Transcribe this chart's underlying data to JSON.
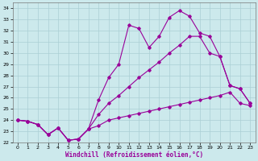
{
  "xlabel": "Windchill (Refroidissement éolien,°C)",
  "bg_color": "#cce9ec",
  "grid_color": "#aacfd4",
  "line_color": "#990099",
  "ylim": [
    22,
    34.5
  ],
  "xlim": [
    -0.5,
    23.5
  ],
  "yticks": [
    22,
    23,
    24,
    25,
    26,
    27,
    28,
    29,
    30,
    31,
    32,
    33,
    34
  ],
  "xticks": [
    0,
    1,
    2,
    3,
    4,
    5,
    6,
    7,
    8,
    9,
    10,
    11,
    12,
    13,
    14,
    15,
    16,
    17,
    18,
    19,
    20,
    21,
    22,
    23
  ],
  "series1_x": [
    0,
    1,
    2,
    3,
    4,
    5,
    6,
    7,
    8,
    9,
    10,
    11,
    12,
    13,
    14,
    15,
    16,
    17,
    18,
    19,
    20,
    21,
    22,
    23
  ],
  "series1_y": [
    24.0,
    23.9,
    23.6,
    22.7,
    23.3,
    22.2,
    22.3,
    23.2,
    23.5,
    24.0,
    24.2,
    24.4,
    24.6,
    24.8,
    25.0,
    25.2,
    25.4,
    25.6,
    25.8,
    26.0,
    26.2,
    26.5,
    25.5,
    25.3
  ],
  "series2_x": [
    0,
    1,
    2,
    3,
    4,
    5,
    6,
    7,
    8,
    9,
    10,
    11,
    12,
    13,
    14,
    15,
    16,
    17,
    18,
    19,
    20,
    21,
    22,
    23
  ],
  "series2_y": [
    24.0,
    23.9,
    23.6,
    22.7,
    23.3,
    22.2,
    22.3,
    23.2,
    25.8,
    27.8,
    29.0,
    32.5,
    32.2,
    30.5,
    31.5,
    33.2,
    33.8,
    33.3,
    31.8,
    31.5,
    29.7,
    27.1,
    26.8,
    25.5
  ],
  "series3_x": [
    0,
    1,
    2,
    3,
    4,
    5,
    6,
    7,
    8,
    9,
    10,
    11,
    12,
    13,
    14,
    15,
    16,
    17,
    18,
    19,
    20,
    21,
    22,
    23
  ],
  "series3_y": [
    24.0,
    23.9,
    23.6,
    22.7,
    23.3,
    22.2,
    22.3,
    23.2,
    24.5,
    25.5,
    26.2,
    27.0,
    27.8,
    28.5,
    29.2,
    30.0,
    30.7,
    31.5,
    31.5,
    30.0,
    29.7,
    27.1,
    26.8,
    25.5
  ]
}
